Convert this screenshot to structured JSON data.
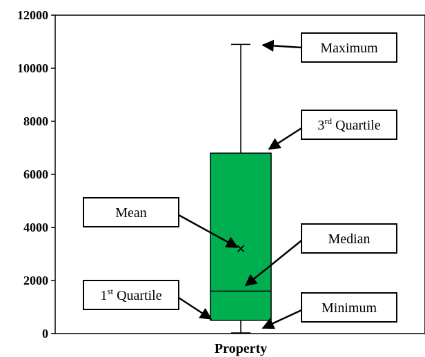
{
  "chart_data": {
    "type": "box",
    "categories": [
      "Property"
    ],
    "ylim": [
      0,
      12000
    ],
    "yticks": [
      0,
      2000,
      4000,
      6000,
      8000,
      10000,
      12000
    ],
    "box": {
      "min": 0,
      "q1": 500,
      "median": 1600,
      "mean": 3200,
      "q3": 6800,
      "max": 10900
    },
    "box_color": "#00b050",
    "annotations": {
      "maximum": "Maximum",
      "q3_base": "3",
      "q3_sup": "rd",
      "q3_rest": " Quartile",
      "mean": "Mean",
      "median": "Median",
      "q1_base": "1",
      "q1_sup": "st",
      "q1_rest": " Quartile",
      "minimum": "Minimum"
    }
  }
}
